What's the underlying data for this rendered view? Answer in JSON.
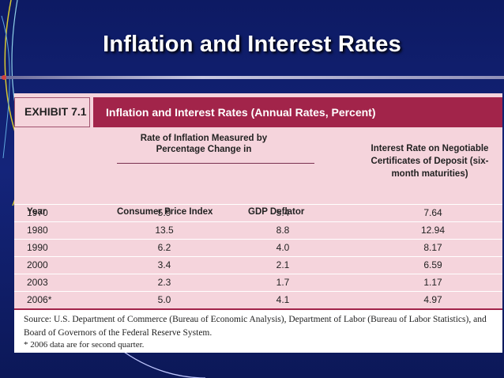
{
  "slide": {
    "title": "Inflation and Interest Rates"
  },
  "colors": {
    "background": "#14247a",
    "exhibit_title_bg": "#a2244a",
    "table_bg": "#f5d4dc"
  },
  "exhibit": {
    "label": "EXHIBIT 7.1",
    "title": "Inflation and Interest Rates (Annual Rates, Percent)",
    "header_group": "Rate of Inflation Measured by Percentage Change in",
    "header_rate": "Interest Rate on Negotiable Certificates of Deposit (six-month maturities)",
    "col_year": "Year",
    "col_cpi": "Consumer Price Index",
    "col_gdp": "GDP Deflator",
    "rows": [
      {
        "year": "1970",
        "cpi": "5.9",
        "gdp": "5.4",
        "rate": "7.64"
      },
      {
        "year": "1980",
        "cpi": "13.5",
        "gdp": "8.8",
        "rate": "12.94"
      },
      {
        "year": "1990",
        "cpi": "6.2",
        "gdp": "4.0",
        "rate": "8.17"
      },
      {
        "year": "2000",
        "cpi": "3.4",
        "gdp": "2.1",
        "rate": "6.59"
      },
      {
        "year": "2003",
        "cpi": "2.3",
        "gdp": "1.7",
        "rate": "1.17"
      },
      {
        "year": "2006*",
        "cpi": "5.0",
        "gdp": "4.1",
        "rate": "4.97"
      }
    ],
    "source": "Source: U.S. Department of Commerce (Bureau of Economic Analysis), Department of Labor (Bureau of Labor Statistics), and Board of Governors of the Federal Reserve System.",
    "footnote": "* 2006 data are for second quarter."
  }
}
